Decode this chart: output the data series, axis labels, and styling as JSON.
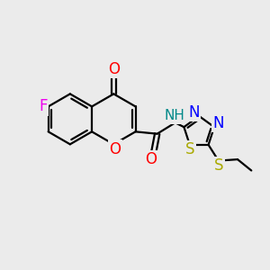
{
  "bg_color": "#ebebeb",
  "bond_color": "#000000",
  "bond_width": 1.6,
  "atoms": {
    "F": {
      "color": "#ee00ee",
      "fontsize": 12
    },
    "O": {
      "color": "#ff0000",
      "fontsize": 12
    },
    "N": {
      "color": "#0000ff",
      "fontsize": 12
    },
    "S": {
      "color": "#aaaa00",
      "fontsize": 12
    },
    "NH": {
      "color": "#008888",
      "fontsize": 11
    }
  }
}
